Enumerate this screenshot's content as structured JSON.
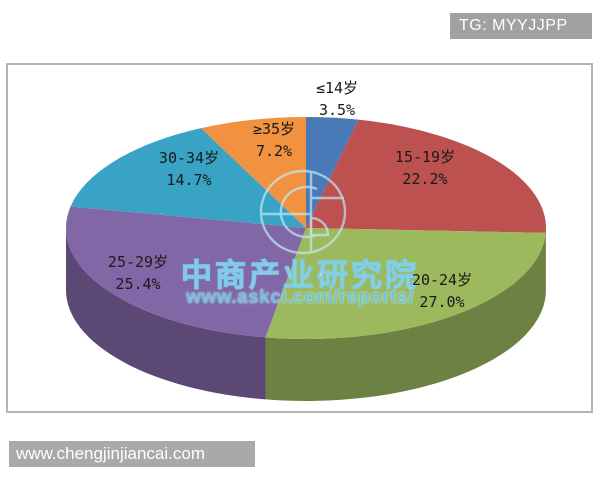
{
  "header": {
    "tag": "TG: MYYJJPP"
  },
  "footer": {
    "url": "www.chengjinjiancai.com"
  },
  "watermark": {
    "org": "中商产业研究院",
    "url": "www.askci.com/reports/",
    "accent_color": "#6fc6e2"
  },
  "chart_data": {
    "type": "pie",
    "style": "3d",
    "title": "",
    "unit": "%",
    "start_angle_deg": 0,
    "direction": "clockwise",
    "legend": "none",
    "slices": [
      {
        "label": "≤14岁",
        "value": 3.5,
        "pct_label": "3.5%",
        "color": "#4a79b8"
      },
      {
        "label": "15-19岁",
        "value": 22.2,
        "pct_label": "22.2%",
        "color": "#bc514f"
      },
      {
        "label": "20-24岁",
        "value": 27.0,
        "pct_label": "27.0%",
        "color": "#9cb95e"
      },
      {
        "label": "25-29岁",
        "value": 25.4,
        "pct_label": "25.4%",
        "color": "#8267a6"
      },
      {
        "label": "30-34岁",
        "value": 14.7,
        "pct_label": "14.7%",
        "color": "#38a3c4"
      },
      {
        "label": "≥35岁",
        "value": 7.2,
        "pct_label": "7.2%",
        "color": "#f0923f"
      }
    ]
  }
}
